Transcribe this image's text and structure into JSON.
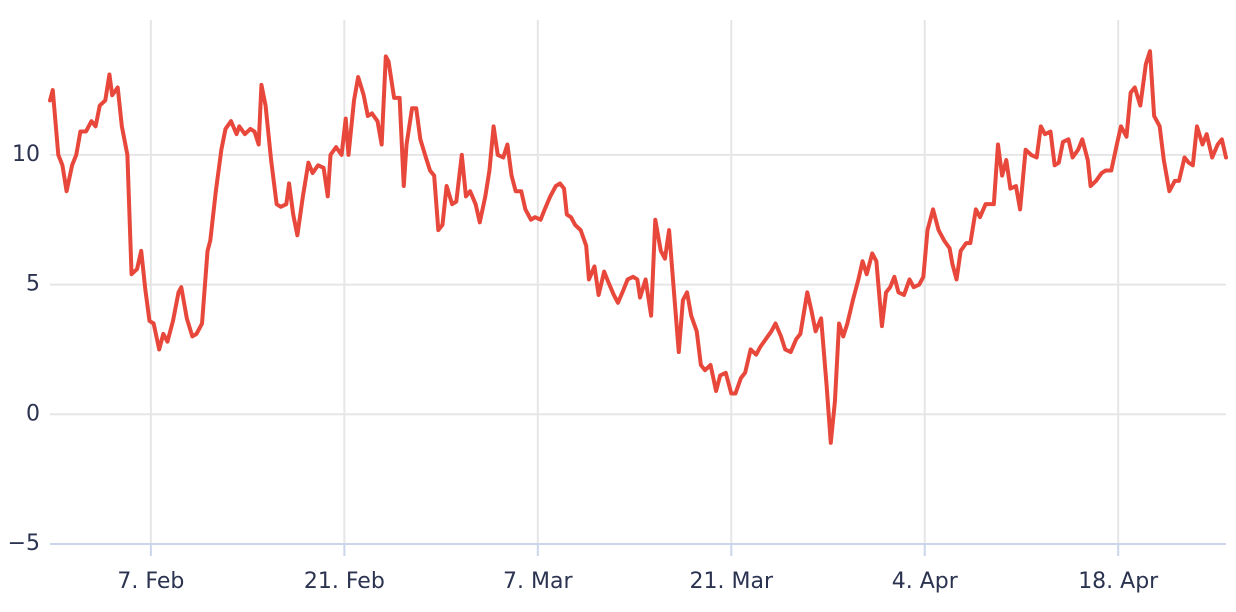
{
  "chart_data": {
    "type": "line",
    "x": [
      30.7,
      30.9,
      31.3,
      31.6,
      31.9,
      32.3,
      32.6,
      32.9,
      33.3,
      33.7,
      34.0,
      34.3,
      34.7,
      35.0,
      35.2,
      35.6,
      35.9,
      36.3,
      36.6,
      37.0,
      37.3,
      37.6,
      37.9,
      38.2,
      38.6,
      38.9,
      39.2,
      39.6,
      40.0,
      40.2,
      40.6,
      41.0,
      41.3,
      41.7,
      42.1,
      42.3,
      42.7,
      43.1,
      43.4,
      43.8,
      44.2,
      44.4,
      44.8,
      45.2,
      45.5,
      45.8,
      46.0,
      46.3,
      46.7,
      47.1,
      47.4,
      47.8,
      48.0,
      48.3,
      48.6,
      49.0,
      49.4,
      49.7,
      50.1,
      50.5,
      50.8,
      51.0,
      51.4,
      51.8,
      52.1,
      52.3,
      52.7,
      53.0,
      53.4,
      53.7,
      54.0,
      54.4,
      54.7,
      55.0,
      55.2,
      55.6,
      56.0,
      56.3,
      56.5,
      56.9,
      57.2,
      57.5,
      57.9,
      58.2,
      58.5,
      58.8,
      59.1,
      59.4,
      59.8,
      60.1,
      60.5,
      60.8,
      61.1,
      61.5,
      61.8,
      62.2,
      62.5,
      62.8,
      63.1,
      63.5,
      63.8,
      64.1,
      64.4,
      64.8,
      65.1,
      65.5,
      65.8,
      66.2,
      66.5,
      66.9,
      67.3,
      67.6,
      67.9,
      68.1,
      68.4,
      68.7,
      69.1,
      69.5,
      69.7,
      70.1,
      70.4,
      70.8,
      71.1,
      71.5,
      71.8,
      72.2,
      72.5,
      72.9,
      73.2,
      73.4,
      73.8,
      74.2,
      74.5,
      74.9,
      75.2,
      75.5,
      75.9,
      76.2,
      76.5,
      76.8,
      77.1,
      77.5,
      77.8,
      78.1,
      78.5,
      78.9,
      79.2,
      79.6,
      80.0,
      80.3,
      80.7,
      81.0,
      81.4,
      81.8,
      82.1,
      82.5,
      82.9,
      83.2,
      83.6,
      83.9,
      84.3,
      84.7,
      85.0,
      85.5,
      85.8,
      86.1,
      86.5,
      86.9,
      87.2,
      87.5,
      87.8,
      88.1,
      88.4,
      88.8,
      89.2,
      89.5,
      89.8,
      90.2,
      90.5,
      90.9,
      91.2,
      91.5,
      91.8,
      92.1,
      92.5,
      92.9,
      93.2,
      93.6,
      93.9,
      94.2,
      94.6,
      95.0,
      95.4,
      95.8,
      96.0,
      96.3,
      96.6,
      97.0,
      97.3,
      97.7,
      98.0,
      98.4,
      98.7,
      99.0,
      99.3,
      99.6,
      99.9,
      100.2,
      100.6,
      100.9,
      101.3,
      101.7,
      102.1,
      102.4,
      102.7,
      103.1,
      103.4,
      103.7,
      104.0,
      104.4,
      104.7,
      105.1,
      105.4,
      105.8,
      106.0,
      106.4,
      106.8,
      107.1,
      107.5,
      107.9,
      108.2,
      108.6,
      108.9,
      109.2,
      109.6,
      110.0,
      110.3,
      110.6,
      111.0,
      111.3,
      111.7,
      112.1,
      112.4,
      112.8,
      113.1,
      113.4,
      113.7,
      114.1,
      114.4,
      114.8,
      115.2,
      115.5,
      115.8
    ],
    "series": [
      {
        "color": "#e8483b",
        "values": [
          12.1,
          12.5,
          10.0,
          9.6,
          8.6,
          9.6,
          10.0,
          10.9,
          10.9,
          11.3,
          11.1,
          11.9,
          12.1,
          13.1,
          12.3,
          12.6,
          11.1,
          10.0,
          5.4,
          5.6,
          6.3,
          4.8,
          3.6,
          3.5,
          2.5,
          3.1,
          2.8,
          3.6,
          4.7,
          4.9,
          3.7,
          3.0,
          3.1,
          3.5,
          6.3,
          6.7,
          8.6,
          10.2,
          11.0,
          11.3,
          10.8,
          11.1,
          10.8,
          11.0,
          10.9,
          10.4,
          12.7,
          11.9,
          9.8,
          8.1,
          8.0,
          8.1,
          8.9,
          7.7,
          6.9,
          8.4,
          9.7,
          9.3,
          9.6,
          9.5,
          8.4,
          10.0,
          10.3,
          10.0,
          11.4,
          10.0,
          12.1,
          13.0,
          12.3,
          11.5,
          11.6,
          11.3,
          10.4,
          13.8,
          13.6,
          12.2,
          12.2,
          8.8,
          10.4,
          11.8,
          11.8,
          10.6,
          9.9,
          9.4,
          9.2,
          7.1,
          7.3,
          8.8,
          8.1,
          8.2,
          10.0,
          8.4,
          8.6,
          8.1,
          7.4,
          8.4,
          9.4,
          11.1,
          10.0,
          9.9,
          10.4,
          9.2,
          8.6,
          8.6,
          7.9,
          7.5,
          7.6,
          7.5,
          7.9,
          8.4,
          8.8,
          8.9,
          8.7,
          7.7,
          7.6,
          7.3,
          7.1,
          6.5,
          5.2,
          5.7,
          4.6,
          5.5,
          5.1,
          4.6,
          4.3,
          4.8,
          5.2,
          5.3,
          5.2,
          4.5,
          5.2,
          3.8,
          7.5,
          6.3,
          6.0,
          7.1,
          4.4,
          2.4,
          4.4,
          4.7,
          3.8,
          3.2,
          1.9,
          1.7,
          1.9,
          0.9,
          1.5,
          1.6,
          0.8,
          0.8,
          1.4,
          1.6,
          2.5,
          2.3,
          2.6,
          2.9,
          3.2,
          3.5,
          3.0,
          2.5,
          2.4,
          2.9,
          3.1,
          4.7,
          4.0,
          3.2,
          3.7,
          1.1,
          -1.1,
          0.5,
          3.5,
          3.0,
          3.5,
          4.4,
          5.2,
          5.9,
          5.4,
          6.2,
          5.9,
          3.4,
          4.7,
          4.9,
          5.3,
          4.7,
          4.6,
          5.2,
          4.9,
          5.0,
          5.3,
          7.1,
          7.9,
          7.1,
          6.7,
          6.4,
          5.8,
          5.2,
          6.3,
          6.6,
          6.6,
          7.9,
          7.6,
          8.1,
          8.1,
          8.1,
          10.4,
          9.2,
          9.8,
          8.7,
          8.8,
          7.9,
          10.2,
          10.0,
          9.9,
          11.1,
          10.8,
          10.9,
          9.6,
          9.7,
          10.5,
          10.6,
          9.9,
          10.2,
          10.6,
          9.8,
          8.8,
          9.0,
          9.3,
          9.4,
          9.4,
          10.4,
          11.1,
          10.7,
          12.4,
          12.6,
          11.9,
          13.5,
          14.0,
          11.5,
          11.1,
          9.8,
          8.6,
          9.0,
          9.0,
          9.9,
          9.7,
          9.6,
          11.1,
          10.4,
          10.8,
          9.9,
          10.4,
          10.6,
          9.9
        ]
      }
    ],
    "xlim": [
      30.7,
      115.8
    ],
    "xticks": [
      {
        "value": 38,
        "label": "7. Feb"
      },
      {
        "value": 52,
        "label": "21. Feb"
      },
      {
        "value": 66,
        "label": "7. Mar"
      },
      {
        "value": 80,
        "label": "21. Mar"
      },
      {
        "value": 94,
        "label": "4. Apr"
      },
      {
        "value": 108,
        "label": "18. Apr"
      }
    ],
    "ylim": [
      -5,
      15.2
    ],
    "yticks": [
      {
        "value": -5,
        "label": "−5"
      },
      0,
      5,
      10
    ],
    "grid": true
  }
}
